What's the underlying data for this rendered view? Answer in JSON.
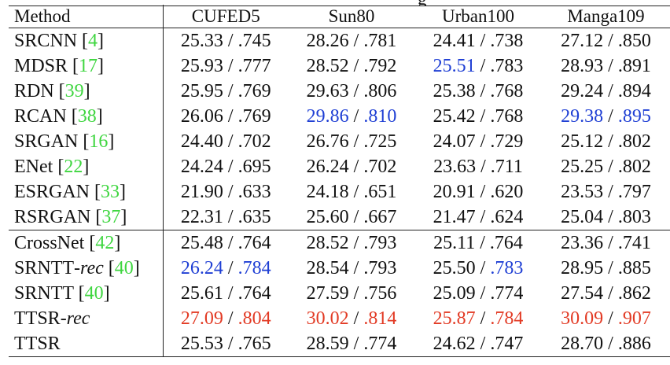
{
  "header": {
    "method": "Method",
    "datasets": [
      "CUFED5",
      "Sun80",
      "Urban100",
      "Manga109"
    ],
    "caption_fragment": "g"
  },
  "rows": [
    {
      "name": "SRCNN",
      "cite": "4",
      "vals": [
        [
          "25.33",
          ".745"
        ],
        [
          "28.26",
          ".781"
        ],
        [
          "24.41",
          ".738"
        ],
        [
          "27.12",
          ".850"
        ]
      ]
    },
    {
      "name": "MDSR",
      "cite": "17",
      "vals": [
        [
          "25.93",
          ".777"
        ],
        [
          "28.52",
          ".792"
        ],
        [
          "25.51",
          ".783"
        ],
        [
          "28.93",
          ".891"
        ]
      ]
    },
    {
      "name": "RDN",
      "cite": "39",
      "vals": [
        [
          "25.95",
          ".769"
        ],
        [
          "29.63",
          ".806"
        ],
        [
          "25.38",
          ".768"
        ],
        [
          "29.24",
          ".894"
        ]
      ]
    },
    {
      "name": "RCAN",
      "cite": "38",
      "vals": [
        [
          "26.06",
          ".769"
        ],
        [
          "29.86",
          ".810"
        ],
        [
          "25.42",
          ".768"
        ],
        [
          "29.38",
          ".895"
        ]
      ]
    },
    {
      "name": "SRGAN",
      "cite": "16",
      "vals": [
        [
          "24.40",
          ".702"
        ],
        [
          "26.76",
          ".725"
        ],
        [
          "24.07",
          ".729"
        ],
        [
          "25.12",
          ".802"
        ]
      ]
    },
    {
      "name": "ENet",
      "cite": "22",
      "vals": [
        [
          "24.24",
          ".695"
        ],
        [
          "26.24",
          ".702"
        ],
        [
          "23.63",
          ".711"
        ],
        [
          "25.25",
          ".802"
        ]
      ]
    },
    {
      "name": "ESRGAN",
      "cite": "33",
      "vals": [
        [
          "21.90",
          ".633"
        ],
        [
          "24.18",
          ".651"
        ],
        [
          "20.91",
          ".620"
        ],
        [
          "23.53",
          ".797"
        ]
      ]
    },
    {
      "name": "RSRGAN",
      "cite": "37",
      "vals": [
        [
          "22.31",
          ".635"
        ],
        [
          "25.60",
          ".667"
        ],
        [
          "21.47",
          ".624"
        ],
        [
          "25.04",
          ".803"
        ]
      ]
    },
    {
      "name": "CrossNet",
      "cite": "42",
      "vals": [
        [
          "25.48",
          ".764"
        ],
        [
          "28.52",
          ".793"
        ],
        [
          "25.11",
          ".764"
        ],
        [
          "23.36",
          ".741"
        ]
      ]
    },
    {
      "name": "SRNTT",
      "suffix": "-rec",
      "cite": "40",
      "vals": [
        [
          "26.24",
          ".784"
        ],
        [
          "28.54",
          ".793"
        ],
        [
          "25.50",
          ".783"
        ],
        [
          "28.95",
          ".885"
        ]
      ]
    },
    {
      "name": "SRNTT",
      "cite": "40",
      "vals": [
        [
          "25.61",
          ".764"
        ],
        [
          "27.59",
          ".756"
        ],
        [
          "25.09",
          ".774"
        ],
        [
          "27.54",
          ".862"
        ]
      ]
    },
    {
      "name": "TTSR",
      "suffix": "-rec",
      "vals": [
        [
          "27.09",
          ".804"
        ],
        [
          "30.02",
          ".814"
        ],
        [
          "25.87",
          ".784"
        ],
        [
          "30.09",
          ".907"
        ]
      ]
    },
    {
      "name": "TTSR",
      "vals": [
        [
          "25.53",
          ".765"
        ],
        [
          "28.59",
          ".774"
        ],
        [
          "24.62",
          ".747"
        ],
        [
          "28.70",
          ".886"
        ]
      ]
    }
  ],
  "highlights": {
    "best": [
      [
        11,
        0,
        0
      ],
      [
        11,
        0,
        1
      ],
      [
        11,
        1,
        0
      ],
      [
        11,
        1,
        1
      ],
      [
        11,
        2,
        0
      ],
      [
        11,
        2,
        1
      ],
      [
        11,
        3,
        0
      ],
      [
        11,
        3,
        1
      ]
    ],
    "second": [
      [
        9,
        0,
        0
      ],
      [
        9,
        0,
        1
      ],
      [
        3,
        1,
        0
      ],
      [
        3,
        1,
        1
      ],
      [
        1,
        2,
        0
      ],
      [
        9,
        2,
        1
      ],
      [
        3,
        3,
        0
      ],
      [
        3,
        3,
        1
      ]
    ]
  },
  "group_breaks": [
    8
  ],
  "colors": {
    "best": "#e23a24",
    "second": "#1f3fd4",
    "citation": "#3fd640",
    "text": "#111111"
  }
}
